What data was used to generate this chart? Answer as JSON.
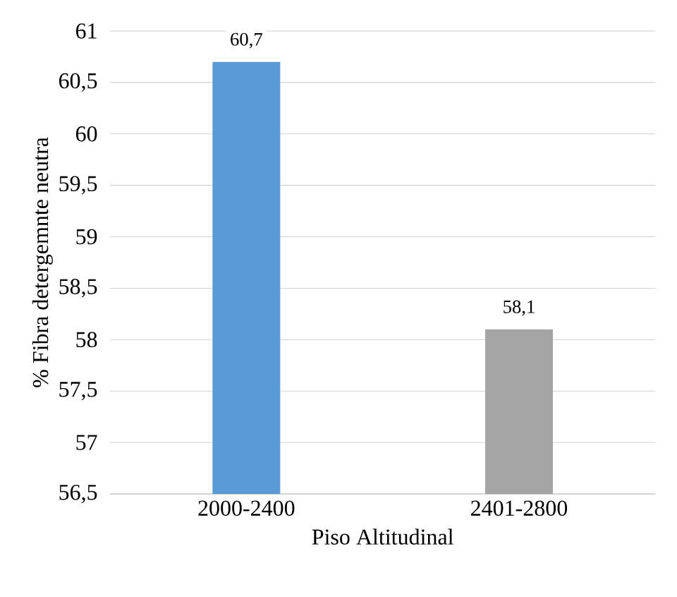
{
  "chart_data": {
    "type": "bar",
    "categories": [
      "2000-2400",
      "2401-2800"
    ],
    "values": [
      60.7,
      58.1
    ],
    "value_labels": [
      "60,7",
      "58,1"
    ],
    "colors": [
      "#5b9bd5",
      "#a5a5a5"
    ],
    "xlabel": "Piso Altitudinal",
    "ylabel": "% Fibra detergemnte neutra",
    "ylim": [
      56.5,
      61
    ],
    "yticks": [
      {
        "value": 56.5,
        "label": "56,5"
      },
      57,
      {
        "value": 57.5,
        "label": "57,5"
      },
      58,
      {
        "value": 58.5,
        "label": "58,5"
      },
      59,
      {
        "value": 59.5,
        "label": "59,5"
      },
      60,
      {
        "value": 60.5,
        "label": "60,5"
      },
      61
    ],
    "grid": "y"
  }
}
